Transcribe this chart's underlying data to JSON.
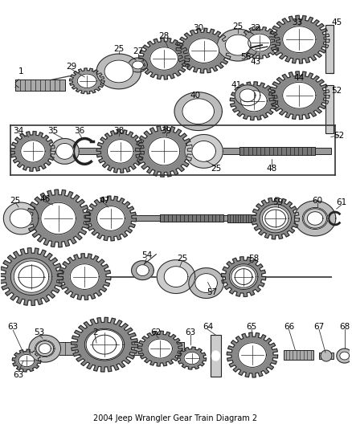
{
  "bg_color": "#ffffff",
  "gear_color": "#888888",
  "gear_edge": "#222222",
  "line_color": "#333333",
  "text_color": "#000000",
  "gear_fill": "#c8c8c8",
  "gear_dark": "#666666",
  "gear_mid": "#999999",
  "gear_light": "#dddddd"
}
